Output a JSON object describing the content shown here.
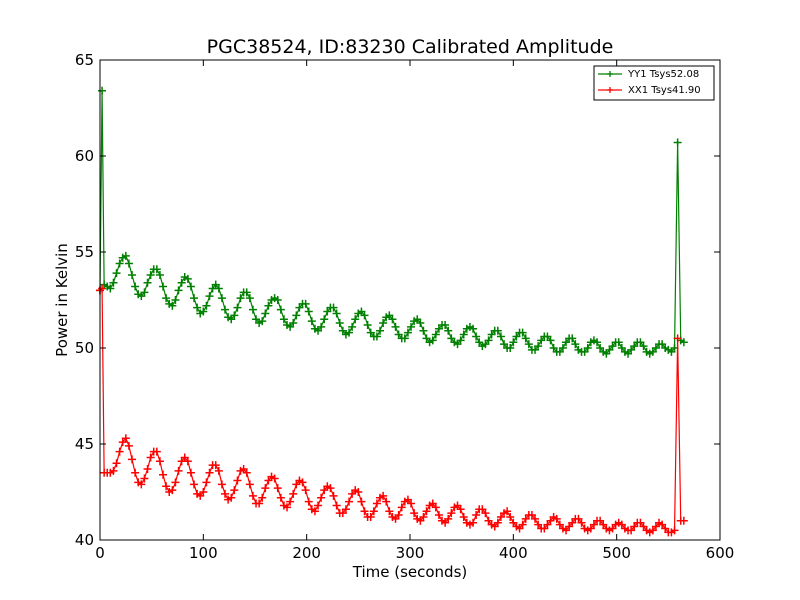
{
  "chart_data": {
    "type": "line",
    "title": "PGC38524, ID:83230 Calibrated Amplitude",
    "xlabel": "Time (seconds)",
    "ylabel": "Power in Kelvin",
    "xlim": [
      0,
      600
    ],
    "ylim": [
      40,
      65
    ],
    "xticks": [
      "0",
      "100",
      "200",
      "300",
      "400",
      "500",
      "600"
    ],
    "yticks": [
      "40",
      "45",
      "50",
      "55",
      "60",
      "65"
    ],
    "grid": false,
    "legend_position": "top-right",
    "x": [
      0,
      2,
      4,
      7,
      10,
      13,
      16,
      19,
      22,
      25,
      28,
      31,
      34,
      37,
      40,
      43,
      46,
      49,
      52,
      55,
      58,
      61,
      64,
      67,
      70,
      73,
      76,
      79,
      82,
      85,
      88,
      91,
      94,
      97,
      100,
      103,
      106,
      109,
      112,
      115,
      118,
      121,
      124,
      127,
      130,
      133,
      136,
      139,
      142,
      145,
      148,
      151,
      154,
      157,
      160,
      163,
      166,
      169,
      172,
      175,
      178,
      181,
      184,
      187,
      190,
      193,
      196,
      199,
      202,
      205,
      208,
      211,
      214,
      217,
      220,
      223,
      226,
      229,
      232,
      235,
      238,
      241,
      244,
      247,
      250,
      253,
      256,
      259,
      262,
      265,
      268,
      271,
      274,
      277,
      280,
      283,
      286,
      289,
      292,
      295,
      298,
      301,
      304,
      307,
      310,
      313,
      316,
      319,
      322,
      325,
      328,
      331,
      334,
      337,
      340,
      343,
      346,
      349,
      352,
      355,
      358,
      361,
      364,
      367,
      370,
      373,
      376,
      379,
      382,
      385,
      388,
      391,
      394,
      397,
      400,
      403,
      406,
      409,
      412,
      415,
      418,
      421,
      424,
      427,
      430,
      433,
      436,
      439,
      442,
      445,
      448,
      451,
      454,
      457,
      460,
      463,
      466,
      469,
      472,
      475,
      478,
      481,
      484,
      487,
      490,
      493,
      496,
      499,
      502,
      505,
      508,
      511,
      514,
      517,
      520,
      523,
      526,
      529,
      532,
      535,
      538,
      541,
      544,
      547,
      550,
      553,
      556,
      559,
      562,
      565
    ],
    "series": [
      {
        "name": "YY1 Tsys52.08",
        "color": "#008000",
        "values": [
          53.0,
          63.4,
          53.3,
          53.2,
          53.1,
          53.4,
          53.9,
          54.4,
          54.7,
          54.8,
          54.4,
          53.8,
          53.2,
          52.8,
          52.7,
          52.9,
          53.4,
          53.8,
          54.1,
          54.1,
          53.8,
          53.2,
          52.6,
          52.3,
          52.2,
          52.5,
          53.0,
          53.4,
          53.7,
          53.6,
          53.2,
          52.6,
          52.1,
          51.8,
          51.9,
          52.2,
          52.7,
          53.1,
          53.3,
          53.1,
          52.6,
          52.0,
          51.6,
          51.5,
          51.7,
          52.1,
          52.6,
          52.9,
          52.9,
          52.6,
          52.0,
          51.5,
          51.3,
          51.4,
          51.8,
          52.2,
          52.5,
          52.6,
          52.5,
          52.0,
          51.5,
          51.2,
          51.1,
          51.3,
          51.7,
          52.1,
          52.3,
          52.3,
          51.9,
          51.4,
          51.0,
          50.9,
          51.1,
          51.5,
          51.9,
          52.1,
          52.1,
          51.8,
          51.3,
          50.9,
          50.7,
          50.8,
          51.1,
          51.5,
          51.8,
          51.9,
          51.7,
          51.2,
          50.8,
          50.6,
          50.6,
          50.9,
          51.3,
          51.6,
          51.7,
          51.5,
          51.1,
          50.7,
          50.5,
          50.5,
          50.8,
          51.1,
          51.4,
          51.5,
          51.3,
          50.9,
          50.5,
          50.3,
          50.4,
          50.7,
          51.0,
          51.2,
          51.2,
          50.9,
          50.5,
          50.3,
          50.2,
          50.4,
          50.7,
          51.0,
          51.1,
          51.0,
          50.6,
          50.3,
          50.1,
          50.2,
          50.4,
          50.7,
          50.9,
          50.9,
          50.6,
          50.2,
          50.0,
          50.0,
          50.3,
          50.6,
          50.8,
          50.8,
          50.5,
          50.2,
          49.9,
          49.9,
          50.1,
          50.4,
          50.6,
          50.6,
          50.4,
          50.0,
          49.8,
          49.8,
          50.0,
          50.3,
          50.5,
          50.5,
          50.2,
          49.9,
          49.8,
          49.8,
          50.0,
          50.3,
          50.4,
          50.3,
          50.0,
          49.8,
          49.7,
          49.9,
          50.1,
          50.3,
          50.3,
          50.0,
          49.8,
          49.7,
          49.9,
          50.1,
          50.3,
          50.3,
          50.1,
          49.8,
          49.7,
          49.8,
          50.0,
          50.2,
          50.2,
          50.0,
          49.9,
          49.8,
          50.0,
          60.7,
          50.4,
          50.3
        ]
      },
      {
        "name": "XX1 Tsys41.90",
        "color": "#ff0000",
        "values": [
          53.0,
          53.1,
          43.5,
          43.5,
          43.5,
          43.6,
          44.0,
          44.6,
          45.1,
          45.3,
          44.9,
          44.2,
          43.5,
          43.0,
          42.9,
          43.2,
          43.7,
          44.3,
          44.6,
          44.6,
          44.1,
          43.4,
          42.8,
          42.5,
          42.6,
          43.0,
          43.6,
          44.1,
          44.3,
          44.1,
          43.5,
          42.9,
          42.4,
          42.3,
          42.5,
          43.0,
          43.5,
          43.9,
          43.9,
          43.6,
          42.9,
          42.4,
          42.1,
          42.2,
          42.6,
          43.1,
          43.6,
          43.7,
          43.5,
          42.9,
          42.3,
          41.9,
          41.9,
          42.2,
          42.7,
          43.1,
          43.3,
          43.2,
          42.7,
          42.2,
          41.8,
          41.7,
          42.0,
          42.4,
          42.9,
          43.1,
          43.0,
          42.6,
          42.0,
          41.6,
          41.5,
          41.8,
          42.2,
          42.6,
          42.8,
          42.7,
          42.3,
          41.8,
          41.4,
          41.4,
          41.6,
          42.0,
          42.4,
          42.6,
          42.5,
          42.0,
          41.5,
          41.2,
          41.2,
          41.5,
          41.9,
          42.2,
          42.3,
          42.0,
          41.5,
          41.2,
          41.1,
          41.3,
          41.7,
          42.0,
          42.1,
          41.9,
          41.4,
          41.1,
          41.0,
          41.2,
          41.5,
          41.8,
          41.9,
          41.7,
          41.3,
          41.0,
          40.9,
          41.1,
          41.4,
          41.7,
          41.8,
          41.6,
          41.2,
          40.9,
          40.8,
          40.9,
          41.3,
          41.6,
          41.6,
          41.4,
          41.0,
          40.8,
          40.7,
          40.9,
          41.2,
          41.4,
          41.5,
          41.2,
          40.9,
          40.7,
          40.6,
          40.8,
          41.1,
          41.3,
          41.3,
          41.1,
          40.8,
          40.6,
          40.6,
          40.8,
          41.0,
          41.2,
          41.1,
          40.8,
          40.6,
          40.5,
          40.7,
          40.9,
          41.1,
          41.1,
          40.9,
          40.6,
          40.5,
          40.6,
          40.8,
          41.0,
          41.0,
          40.8,
          40.6,
          40.5,
          40.6,
          40.8,
          40.9,
          40.8,
          40.6,
          40.5,
          40.5,
          40.7,
          40.9,
          40.9,
          40.7,
          40.5,
          40.4,
          40.5,
          40.7,
          40.9,
          40.8,
          40.6,
          40.4,
          40.4,
          40.5,
          50.5,
          41.0,
          41.0
        ]
      }
    ]
  }
}
